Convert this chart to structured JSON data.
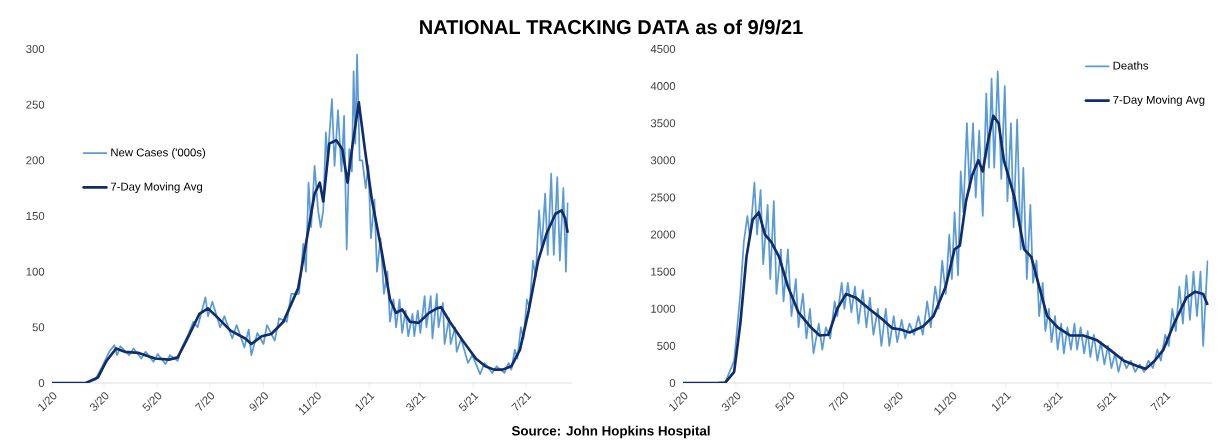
{
  "chart_data": [
    {
      "type": "line",
      "title": "NATIONAL TRACKING DATA as of 9/9/21",
      "annotations": [
        "Source: John Hopkins Hospital"
      ],
      "legend": "top left",
      "xlim": [
        "2020-01-22",
        "2021-09-13"
      ],
      "ylim": [
        0,
        300
      ],
      "yticks": [
        0,
        50,
        100,
        150,
        200,
        250,
        300
      ],
      "xticks": [
        {
          "value": "2020-01-22",
          "label": "1/20"
        },
        {
          "value": "2020-03-22",
          "label": "3/20"
        },
        {
          "value": "2020-05-22",
          "label": "5/20"
        },
        {
          "value": "2020-07-22",
          "label": "7/20"
        },
        {
          "value": "2020-09-22",
          "label": "9/20"
        },
        {
          "value": "2020-11-22",
          "label": "11/20"
        },
        {
          "value": "2021-01-22",
          "label": "1/21"
        },
        {
          "value": "2021-03-22",
          "label": "3/21"
        },
        {
          "value": "2021-05-22",
          "label": "5/21"
        },
        {
          "value": "2021-07-22",
          "label": "7/21"
        }
      ],
      "series": [
        {
          "name": "New Cases ('000s)",
          "color": "#5b9bd5",
          "x": [
            "2020-01-22",
            "2020-03-01",
            "2020-03-12",
            "2020-03-20",
            "2020-03-28",
            "2020-04-03",
            "2020-04-06",
            "2020-04-10",
            "2020-04-20",
            "2020-04-25",
            "2020-05-04",
            "2020-05-09",
            "2020-05-18",
            "2020-05-23",
            "2020-06-01",
            "2020-06-06",
            "2020-06-15",
            "2020-06-20",
            "2020-06-28",
            "2020-07-03",
            "2020-07-08",
            "2020-07-17",
            "2020-07-20",
            "2020-07-25",
            "2020-08-03",
            "2020-08-08",
            "2020-08-17",
            "2020-08-22",
            "2020-08-31",
            "2020-09-05",
            "2020-09-08",
            "2020-09-15",
            "2020-09-22",
            "2020-09-26",
            "2020-10-05",
            "2020-10-10",
            "2020-10-19",
            "2020-10-24",
            "2020-11-02",
            "2020-11-07",
            "2020-11-10",
            "2020-11-13",
            "2020-11-16",
            "2020-11-20",
            "2020-11-24",
            "2020-11-27",
            "2020-11-30",
            "2020-12-03",
            "2020-12-05",
            "2020-12-10",
            "2020-12-13",
            "2020-12-17",
            "2020-12-21",
            "2020-12-24",
            "2020-12-27",
            "2020-12-30",
            "2021-01-02",
            "2021-01-04",
            "2021-01-06",
            "2021-01-08",
            "2021-01-11",
            "2021-01-14",
            "2021-01-18",
            "2021-01-21",
            "2021-01-24",
            "2021-01-28",
            "2021-01-31",
            "2021-02-04",
            "2021-02-08",
            "2021-02-12",
            "2021-02-15",
            "2021-02-19",
            "2021-02-22",
            "2021-02-26",
            "2021-03-01",
            "2021-03-05",
            "2021-03-08",
            "2021-03-13",
            "2021-03-15",
            "2021-03-19",
            "2021-03-22",
            "2021-03-27",
            "2021-03-29",
            "2021-04-03",
            "2021-04-05",
            "2021-04-10",
            "2021-04-12",
            "2021-04-17",
            "2021-04-19",
            "2021-04-24",
            "2021-04-26",
            "2021-05-01",
            "2021-05-03",
            "2021-05-08",
            "2021-05-16",
            "2021-05-21",
            "2021-05-30",
            "2021-06-04",
            "2021-06-13",
            "2021-06-18",
            "2021-06-27",
            "2021-07-02",
            "2021-07-05",
            "2021-07-09",
            "2021-07-12",
            "2021-07-16",
            "2021-07-19",
            "2021-07-23",
            "2021-07-26",
            "2021-07-30",
            "2021-08-02",
            "2021-08-06",
            "2021-08-09",
            "2021-08-13",
            "2021-08-16",
            "2021-08-20",
            "2021-08-23",
            "2021-08-27",
            "2021-08-30",
            "2021-09-03",
            "2021-09-06",
            "2021-09-08"
          ],
          "values": [
            0,
            0,
            3,
            15,
            28,
            34,
            25,
            33,
            25,
            31,
            22,
            28,
            19,
            26,
            17,
            25,
            20,
            32,
            45,
            55,
            50,
            77,
            60,
            73,
            50,
            60,
            40,
            52,
            32,
            48,
            25,
            45,
            35,
            52,
            38,
            58,
            55,
            80,
            80,
            125,
            100,
            180,
            140,
            195,
            155,
            140,
            155,
            225,
            200,
            255,
            195,
            245,
            190,
            240,
            120,
            210,
            190,
            280,
            215,
            295,
            200,
            200,
            175,
            195,
            130,
            165,
            100,
            130,
            80,
            100,
            55,
            75,
            50,
            75,
            45,
            65,
            42,
            62,
            42,
            65,
            45,
            78,
            50,
            78,
            40,
            80,
            50,
            72,
            35,
            58,
            35,
            50,
            28,
            40,
            18,
            25,
            8,
            18,
            9,
            15,
            9,
            18,
            12,
            30,
            22,
            50,
            40,
            75,
            68,
            110,
            95,
            155,
            120,
            170,
            115,
            188,
            115,
            185,
            110,
            175,
            100,
            162
          ]
        },
        {
          "name": "7-Day Moving Avg",
          "color": "#102c6b",
          "x": [
            "2020-01-22",
            "2020-03-01",
            "2020-03-15",
            "2020-03-25",
            "2020-04-05",
            "2020-04-15",
            "2020-05-01",
            "2020-05-20",
            "2020-06-05",
            "2020-06-15",
            "2020-06-25",
            "2020-07-10",
            "2020-07-20",
            "2020-08-01",
            "2020-08-15",
            "2020-09-01",
            "2020-09-08",
            "2020-09-20",
            "2020-10-01",
            "2020-10-15",
            "2020-11-01",
            "2020-11-10",
            "2020-11-20",
            "2020-11-26",
            "2020-11-30",
            "2020-12-07",
            "2020-12-15",
            "2020-12-22",
            "2020-12-28",
            "2021-01-03",
            "2021-01-10",
            "2021-01-17",
            "2021-01-25",
            "2021-02-05",
            "2021-02-15",
            "2021-02-22",
            "2021-03-01",
            "2021-03-10",
            "2021-03-20",
            "2021-04-01",
            "2021-04-10",
            "2021-04-15",
            "2021-04-25",
            "2021-05-10",
            "2021-05-25",
            "2021-06-05",
            "2021-06-15",
            "2021-06-25",
            "2021-07-05",
            "2021-07-15",
            "2021-07-25",
            "2021-08-05",
            "2021-08-15",
            "2021-08-25",
            "2021-09-01",
            "2021-09-05",
            "2021-09-08"
          ],
          "values": [
            0,
            0,
            5,
            20,
            31,
            28,
            27,
            22,
            21,
            23,
            38,
            62,
            67,
            58,
            47,
            40,
            35,
            42,
            44,
            55,
            85,
            125,
            170,
            180,
            163,
            215,
            218,
            210,
            180,
            215,
            252,
            210,
            165,
            120,
            75,
            63,
            66,
            55,
            54,
            63,
            67,
            68,
            55,
            38,
            22,
            15,
            12,
            12,
            15,
            30,
            65,
            110,
            135,
            152,
            155,
            148,
            135
          ]
        }
      ]
    },
    {
      "type": "line",
      "legend": "top right",
      "xlim": [
        "2020-01-22",
        "2021-09-13"
      ],
      "ylim": [
        0,
        4500
      ],
      "yticks": [
        0,
        500,
        1000,
        1500,
        2000,
        2500,
        3000,
        3500,
        4000,
        4500
      ],
      "xticks": [
        {
          "value": "2020-01-22",
          "label": "1/20"
        },
        {
          "value": "2020-03-22",
          "label": "3/20"
        },
        {
          "value": "2020-05-22",
          "label": "5/20"
        },
        {
          "value": "2020-07-22",
          "label": "7/20"
        },
        {
          "value": "2020-09-22",
          "label": "9/20"
        },
        {
          "value": "2020-11-22",
          "label": "11/20"
        },
        {
          "value": "2021-01-22",
          "label": "1/21"
        },
        {
          "value": "2021-03-22",
          "label": "3/21"
        },
        {
          "value": "2021-05-22",
          "label": "5/21"
        },
        {
          "value": "2021-07-22",
          "label": "7/21"
        }
      ],
      "series": [
        {
          "name": "Deaths",
          "color": "#5b9bd5",
          "x": [
            "2020-01-22",
            "2020-03-01",
            "2020-03-10",
            "2020-03-20",
            "2020-03-27",
            "2020-03-31",
            "2020-04-04",
            "2020-04-07",
            "2020-04-12",
            "2020-04-15",
            "2020-04-19",
            "2020-04-22",
            "2020-04-27",
            "2020-04-30",
            "2020-05-04",
            "2020-05-07",
            "2020-05-12",
            "2020-05-15",
            "2020-05-20",
            "2020-05-24",
            "2020-05-29",
            "2020-06-01",
            "2020-06-06",
            "2020-06-10",
            "2020-06-14",
            "2020-06-18",
            "2020-06-24",
            "2020-06-28",
            "2020-07-02",
            "2020-07-07",
            "2020-07-12",
            "2020-07-15",
            "2020-07-20",
            "2020-07-23",
            "2020-07-27",
            "2020-07-31",
            "2020-08-04",
            "2020-08-08",
            "2020-08-13",
            "2020-08-17",
            "2020-08-21",
            "2020-08-25",
            "2020-08-30",
            "2020-09-03",
            "2020-09-08",
            "2020-09-12",
            "2020-09-17",
            "2020-09-21",
            "2020-09-26",
            "2020-09-30",
            "2020-10-05",
            "2020-10-10",
            "2020-10-15",
            "2020-10-20",
            "2020-10-25",
            "2020-10-29",
            "2020-11-03",
            "2020-11-07",
            "2020-11-11",
            "2020-11-15",
            "2020-11-19",
            "2020-11-22",
            "2020-11-25",
            "2020-11-29",
            "2020-12-02",
            "2020-12-05",
            "2020-12-09",
            "2020-12-12",
            "2020-12-16",
            "2020-12-19",
            "2020-12-23",
            "2020-12-27",
            "2020-12-31",
            "2021-01-03",
            "2021-01-06",
            "2021-01-09",
            "2021-01-13",
            "2021-01-17",
            "2021-01-21",
            "2021-01-24",
            "2021-01-28",
            "2021-01-31",
            "2021-02-04",
            "2021-02-08",
            "2021-02-11",
            "2021-02-15",
            "2021-02-19",
            "2021-02-22",
            "2021-02-26",
            "2021-03-01",
            "2021-03-05",
            "2021-03-08",
            "2021-03-12",
            "2021-03-15",
            "2021-03-19",
            "2021-03-22",
            "2021-03-26",
            "2021-03-29",
            "2021-04-02",
            "2021-04-06",
            "2021-04-10",
            "2021-04-13",
            "2021-04-17",
            "2021-04-21",
            "2021-04-25",
            "2021-04-28",
            "2021-05-02",
            "2021-05-06",
            "2021-05-10",
            "2021-05-14",
            "2021-05-18",
            "2021-05-22",
            "2021-05-26",
            "2021-05-30",
            "2021-06-03",
            "2021-06-08",
            "2021-06-13",
            "2021-06-18",
            "2021-06-23",
            "2021-06-28",
            "2021-07-03",
            "2021-07-08",
            "2021-07-13",
            "2021-07-17",
            "2021-07-22",
            "2021-07-26",
            "2021-07-30",
            "2021-08-03",
            "2021-08-07",
            "2021-08-11",
            "2021-08-15",
            "2021-08-19",
            "2021-08-23",
            "2021-08-27",
            "2021-08-31",
            "2021-09-03",
            "2021-09-08"
          ],
          "values": [
            0,
            0,
            10,
            300,
            1200,
            1900,
            2250,
            1950,
            2700,
            2000,
            2600,
            1600,
            2400,
            1400,
            2450,
            1200,
            1800,
            1100,
            1800,
            900,
            1400,
            750,
            1200,
            600,
            1000,
            400,
            800,
            450,
            750,
            600,
            1100,
            900,
            1350,
            1000,
            1350,
            950,
            1300,
            800,
            1250,
            750,
            1150,
            650,
            1000,
            500,
            1000,
            500,
            900,
            550,
            850,
            600,
            800,
            650,
            900,
            650,
            1100,
            750,
            1300,
            1000,
            1650,
            1200,
            2000,
            1400,
            2300,
            1450,
            2850,
            2300,
            3500,
            2600,
            3500,
            2500,
            3400,
            2250,
            3900,
            2900,
            4100,
            2900,
            4200,
            2750,
            4000,
            2450,
            3500,
            2100,
            3550,
            1800,
            2900,
            1400,
            2400,
            1350,
            1650,
            900,
            1350,
            700,
            1000,
            550,
            900,
            450,
            800,
            400,
            750,
            450,
            800,
            450,
            750,
            400,
            700,
            350,
            650,
            300,
            550,
            250,
            500,
            200,
            400,
            150,
            350,
            200,
            300,
            150,
            250,
            150,
            300,
            200,
            450,
            300,
            650,
            500,
            1000,
            700,
            1300,
            800,
            1450,
            850,
            1500,
            900,
            1500,
            500,
            1650
          ]
        },
        {
          "name": "7-Day Moving Avg",
          "color": "#102c6b",
          "x": [
            "2020-01-22",
            "2020-03-01",
            "2020-03-10",
            "2020-03-20",
            "2020-03-27",
            "2020-04-03",
            "2020-04-10",
            "2020-04-17",
            "2020-04-24",
            "2020-05-01",
            "2020-05-10",
            "2020-05-20",
            "2020-06-01",
            "2020-06-15",
            "2020-06-25",
            "2020-07-05",
            "2020-07-15",
            "2020-07-25",
            "2020-08-05",
            "2020-08-20",
            "2020-09-05",
            "2020-09-15",
            "2020-09-25",
            "2020-10-05",
            "2020-10-20",
            "2020-11-01",
            "2020-11-15",
            "2020-11-25",
            "2020-12-01",
            "2020-12-08",
            "2020-12-15",
            "2020-12-22",
            "2020-12-27",
            "2021-01-01",
            "2021-01-08",
            "2021-01-14",
            "2021-01-20",
            "2021-02-01",
            "2021-02-12",
            "2021-02-20",
            "2021-03-01",
            "2021-03-10",
            "2021-03-22",
            "2021-04-05",
            "2021-04-20",
            "2021-05-05",
            "2021-05-20",
            "2021-06-05",
            "2021-06-20",
            "2021-06-30",
            "2021-07-10",
            "2021-07-20",
            "2021-08-01",
            "2021-08-15",
            "2021-08-25",
            "2021-09-03",
            "2021-09-08"
          ],
          "values": [
            0,
            0,
            5,
            150,
            800,
            1700,
            2200,
            2300,
            2000,
            1900,
            1700,
            1300,
            950,
            750,
            640,
            650,
            1000,
            1200,
            1150,
            1000,
            850,
            740,
            720,
            680,
            760,
            900,
            1300,
            1800,
            1850,
            2450,
            2800,
            3000,
            2850,
            3200,
            3600,
            3500,
            3000,
            2500,
            1800,
            1700,
            1300,
            900,
            750,
            640,
            640,
            580,
            450,
            300,
            230,
            190,
            300,
            450,
            800,
            1150,
            1230,
            1200,
            1050
          ]
        }
      ]
    }
  ]
}
